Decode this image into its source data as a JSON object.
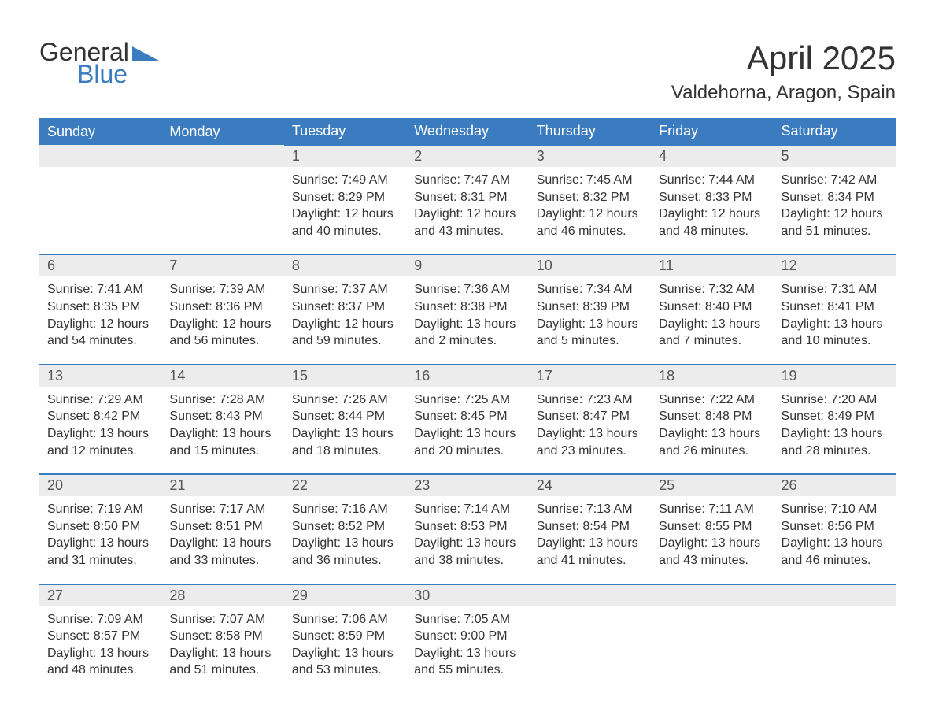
{
  "logo": {
    "text_top": "General",
    "text_bottom": "Blue",
    "top_color": "#333333",
    "bottom_color": "#3b7bbf",
    "triangle_color": "#3b7bbf"
  },
  "header": {
    "title": "April 2025",
    "location": "Valdehorna, Aragon, Spain"
  },
  "colors": {
    "header_bg": "#3b7bbf",
    "header_text": "#ffffff",
    "daynum_bg": "#ececec",
    "border_top": "#3b7bbf",
    "body_text": "#333333"
  },
  "fonts": {
    "title_size": 42,
    "location_size": 24,
    "th_size": 18,
    "daynum_size": 18,
    "cell_size": 16
  },
  "day_names": [
    "Sunday",
    "Monday",
    "Tuesday",
    "Wednesday",
    "Thursday",
    "Friday",
    "Saturday"
  ],
  "weeks": [
    [
      null,
      null,
      {
        "n": "1",
        "sunrise": "Sunrise: 7:49 AM",
        "sunset": "Sunset: 8:29 PM",
        "dl1": "Daylight: 12 hours",
        "dl2": "and 40 minutes."
      },
      {
        "n": "2",
        "sunrise": "Sunrise: 7:47 AM",
        "sunset": "Sunset: 8:31 PM",
        "dl1": "Daylight: 12 hours",
        "dl2": "and 43 minutes."
      },
      {
        "n": "3",
        "sunrise": "Sunrise: 7:45 AM",
        "sunset": "Sunset: 8:32 PM",
        "dl1": "Daylight: 12 hours",
        "dl2": "and 46 minutes."
      },
      {
        "n": "4",
        "sunrise": "Sunrise: 7:44 AM",
        "sunset": "Sunset: 8:33 PM",
        "dl1": "Daylight: 12 hours",
        "dl2": "and 48 minutes."
      },
      {
        "n": "5",
        "sunrise": "Sunrise: 7:42 AM",
        "sunset": "Sunset: 8:34 PM",
        "dl1": "Daylight: 12 hours",
        "dl2": "and 51 minutes."
      }
    ],
    [
      {
        "n": "6",
        "sunrise": "Sunrise: 7:41 AM",
        "sunset": "Sunset: 8:35 PM",
        "dl1": "Daylight: 12 hours",
        "dl2": "and 54 minutes."
      },
      {
        "n": "7",
        "sunrise": "Sunrise: 7:39 AM",
        "sunset": "Sunset: 8:36 PM",
        "dl1": "Daylight: 12 hours",
        "dl2": "and 56 minutes."
      },
      {
        "n": "8",
        "sunrise": "Sunrise: 7:37 AM",
        "sunset": "Sunset: 8:37 PM",
        "dl1": "Daylight: 12 hours",
        "dl2": "and 59 minutes."
      },
      {
        "n": "9",
        "sunrise": "Sunrise: 7:36 AM",
        "sunset": "Sunset: 8:38 PM",
        "dl1": "Daylight: 13 hours",
        "dl2": "and 2 minutes."
      },
      {
        "n": "10",
        "sunrise": "Sunrise: 7:34 AM",
        "sunset": "Sunset: 8:39 PM",
        "dl1": "Daylight: 13 hours",
        "dl2": "and 5 minutes."
      },
      {
        "n": "11",
        "sunrise": "Sunrise: 7:32 AM",
        "sunset": "Sunset: 8:40 PM",
        "dl1": "Daylight: 13 hours",
        "dl2": "and 7 minutes."
      },
      {
        "n": "12",
        "sunrise": "Sunrise: 7:31 AM",
        "sunset": "Sunset: 8:41 PM",
        "dl1": "Daylight: 13 hours",
        "dl2": "and 10 minutes."
      }
    ],
    [
      {
        "n": "13",
        "sunrise": "Sunrise: 7:29 AM",
        "sunset": "Sunset: 8:42 PM",
        "dl1": "Daylight: 13 hours",
        "dl2": "and 12 minutes."
      },
      {
        "n": "14",
        "sunrise": "Sunrise: 7:28 AM",
        "sunset": "Sunset: 8:43 PM",
        "dl1": "Daylight: 13 hours",
        "dl2": "and 15 minutes."
      },
      {
        "n": "15",
        "sunrise": "Sunrise: 7:26 AM",
        "sunset": "Sunset: 8:44 PM",
        "dl1": "Daylight: 13 hours",
        "dl2": "and 18 minutes."
      },
      {
        "n": "16",
        "sunrise": "Sunrise: 7:25 AM",
        "sunset": "Sunset: 8:45 PM",
        "dl1": "Daylight: 13 hours",
        "dl2": "and 20 minutes."
      },
      {
        "n": "17",
        "sunrise": "Sunrise: 7:23 AM",
        "sunset": "Sunset: 8:47 PM",
        "dl1": "Daylight: 13 hours",
        "dl2": "and 23 minutes."
      },
      {
        "n": "18",
        "sunrise": "Sunrise: 7:22 AM",
        "sunset": "Sunset: 8:48 PM",
        "dl1": "Daylight: 13 hours",
        "dl2": "and 26 minutes."
      },
      {
        "n": "19",
        "sunrise": "Sunrise: 7:20 AM",
        "sunset": "Sunset: 8:49 PM",
        "dl1": "Daylight: 13 hours",
        "dl2": "and 28 minutes."
      }
    ],
    [
      {
        "n": "20",
        "sunrise": "Sunrise: 7:19 AM",
        "sunset": "Sunset: 8:50 PM",
        "dl1": "Daylight: 13 hours",
        "dl2": "and 31 minutes."
      },
      {
        "n": "21",
        "sunrise": "Sunrise: 7:17 AM",
        "sunset": "Sunset: 8:51 PM",
        "dl1": "Daylight: 13 hours",
        "dl2": "and 33 minutes."
      },
      {
        "n": "22",
        "sunrise": "Sunrise: 7:16 AM",
        "sunset": "Sunset: 8:52 PM",
        "dl1": "Daylight: 13 hours",
        "dl2": "and 36 minutes."
      },
      {
        "n": "23",
        "sunrise": "Sunrise: 7:14 AM",
        "sunset": "Sunset: 8:53 PM",
        "dl1": "Daylight: 13 hours",
        "dl2": "and 38 minutes."
      },
      {
        "n": "24",
        "sunrise": "Sunrise: 7:13 AM",
        "sunset": "Sunset: 8:54 PM",
        "dl1": "Daylight: 13 hours",
        "dl2": "and 41 minutes."
      },
      {
        "n": "25",
        "sunrise": "Sunrise: 7:11 AM",
        "sunset": "Sunset: 8:55 PM",
        "dl1": "Daylight: 13 hours",
        "dl2": "and 43 minutes."
      },
      {
        "n": "26",
        "sunrise": "Sunrise: 7:10 AM",
        "sunset": "Sunset: 8:56 PM",
        "dl1": "Daylight: 13 hours",
        "dl2": "and 46 minutes."
      }
    ],
    [
      {
        "n": "27",
        "sunrise": "Sunrise: 7:09 AM",
        "sunset": "Sunset: 8:57 PM",
        "dl1": "Daylight: 13 hours",
        "dl2": "and 48 minutes."
      },
      {
        "n": "28",
        "sunrise": "Sunrise: 7:07 AM",
        "sunset": "Sunset: 8:58 PM",
        "dl1": "Daylight: 13 hours",
        "dl2": "and 51 minutes."
      },
      {
        "n": "29",
        "sunrise": "Sunrise: 7:06 AM",
        "sunset": "Sunset: 8:59 PM",
        "dl1": "Daylight: 13 hours",
        "dl2": "and 53 minutes."
      },
      {
        "n": "30",
        "sunrise": "Sunrise: 7:05 AM",
        "sunset": "Sunset: 9:00 PM",
        "dl1": "Daylight: 13 hours",
        "dl2": "and 55 minutes."
      },
      null,
      null,
      null
    ]
  ]
}
